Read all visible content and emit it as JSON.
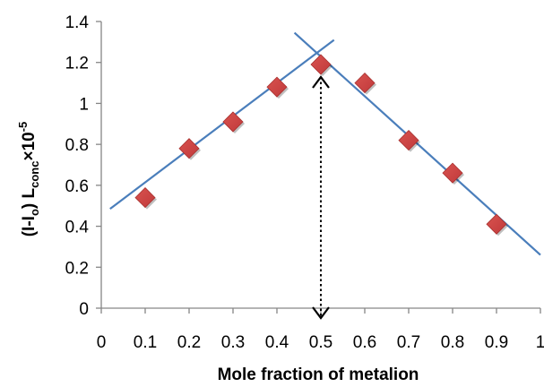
{
  "chart_data": {
    "type": "scatter",
    "xlabel": "Mole fraction of metalion",
    "ylabel": {
      "main": "(I-I",
      "sub1": "o",
      "mid": ") L",
      "sub2": "conc",
      "times": "×10",
      "sup": "-5"
    },
    "xlim": [
      0,
      1
    ],
    "ylim": [
      0,
      1.4
    ],
    "x_ticks": [
      "0",
      "0.1",
      "0.2",
      "0.3",
      "0.4",
      "0.5",
      "0.6",
      "0.7",
      "0.8",
      "0.9",
      "1"
    ],
    "y_ticks": [
      "0",
      "0.2",
      "0.4",
      "0.6",
      "0.8",
      "1",
      "1.2",
      "1.4"
    ],
    "grid": false,
    "legend": "none",
    "marker_color": "#c0393b",
    "line_color": "#4a7ebb",
    "series": [
      {
        "x": [
          0.1,
          0.2,
          0.3,
          0.4,
          0.5,
          0.6,
          0.7,
          0.8,
          0.9
        ],
        "y": [
          0.54,
          0.78,
          0.91,
          1.08,
          1.19,
          1.1,
          0.82,
          0.66,
          0.41
        ]
      }
    ],
    "trendlines": [
      {
        "from": [
          0.02,
          0.485
        ],
        "to": [
          0.53,
          1.31
        ]
      },
      {
        "from": [
          0.44,
          1.345
        ],
        "to": [
          1.0,
          0.26
        ]
      }
    ],
    "annotation": {
      "type": "double-arrow-dotted",
      "x": 0.5,
      "y_from": 0,
      "y_to": 1.19
    }
  }
}
